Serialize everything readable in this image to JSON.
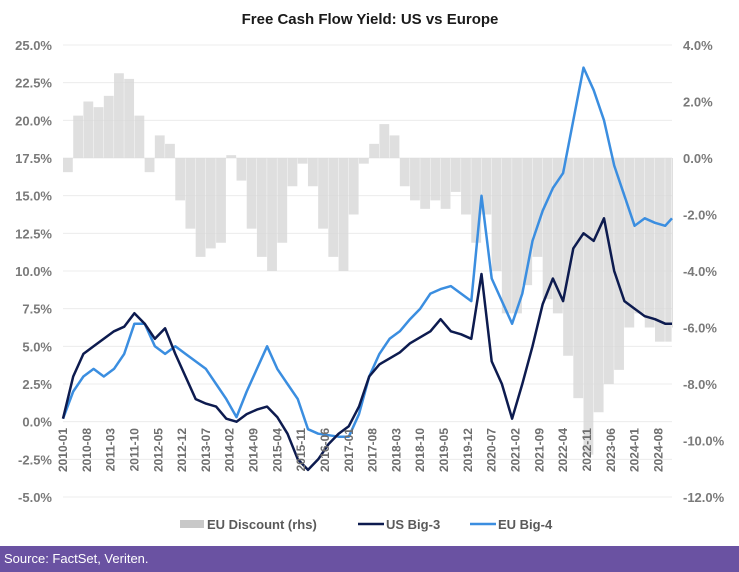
{
  "chart_data": {
    "type": "line",
    "title": "Free Cash Flow Yield: US vs Europe",
    "xlabel": "",
    "ylabel": "",
    "y_left": {
      "range": [
        -5.0,
        25.0
      ],
      "ticks": [
        "25.0%",
        "22.5%",
        "20.0%",
        "17.5%",
        "15.0%",
        "12.5%",
        "10.0%",
        "7.5%",
        "5.0%",
        "2.5%",
        "0.0%",
        "-2.5%",
        "-5.0%"
      ]
    },
    "y_right": {
      "range": [
        -12.0,
        4.0
      ],
      "ticks": [
        "4.0%",
        "2.0%",
        "0.0%",
        "-2.0%",
        "-4.0%",
        "-6.0%",
        "-8.0%",
        "-10.0%",
        "-12.0%"
      ]
    },
    "x_ticks": [
      "2010-01",
      "2010-08",
      "2011-03",
      "2011-10",
      "2012-05",
      "2012-12",
      "2013-07",
      "2014-02",
      "2014-09",
      "2015-04",
      "2015-11",
      "2016-06",
      "2017-01",
      "2017-08",
      "2018-03",
      "2018-10",
      "2019-05",
      "2019-12",
      "2020-07",
      "2021-02",
      "2021-09",
      "2022-04",
      "2022-11",
      "2023-06",
      "2024-01",
      "2024-08"
    ],
    "x": [
      "2010-01",
      "2010-04",
      "2010-07",
      "2010-10",
      "2011-01",
      "2011-04",
      "2011-07",
      "2011-10",
      "2012-01",
      "2012-04",
      "2012-07",
      "2012-10",
      "2013-01",
      "2013-04",
      "2013-07",
      "2013-10",
      "2014-01",
      "2014-04",
      "2014-07",
      "2014-10",
      "2015-01",
      "2015-04",
      "2015-07",
      "2015-10",
      "2016-01",
      "2016-04",
      "2016-07",
      "2016-10",
      "2017-01",
      "2017-04",
      "2017-07",
      "2017-10",
      "2018-01",
      "2018-04",
      "2018-07",
      "2018-10",
      "2019-01",
      "2019-04",
      "2019-07",
      "2019-10",
      "2020-01",
      "2020-04",
      "2020-07",
      "2020-10",
      "2021-01",
      "2021-04",
      "2021-07",
      "2021-10",
      "2022-01",
      "2022-04",
      "2022-07",
      "2022-10",
      "2023-01",
      "2023-04",
      "2023-07",
      "2023-10",
      "2024-01",
      "2024-04",
      "2024-07",
      "2024-10",
      "2024-12"
    ],
    "grid": true,
    "legend_position": "bottom",
    "series": [
      {
        "name": "EU Discount (rhs)",
        "type": "bar",
        "axis": "right",
        "color": "#d9d9d9",
        "values": [
          -0.5,
          1.5,
          2.0,
          1.8,
          2.2,
          3.0,
          2.8,
          1.5,
          -0.5,
          0.8,
          0.5,
          -1.5,
          -2.5,
          -3.5,
          -3.2,
          -3.0,
          0.1,
          -0.8,
          -2.5,
          -3.5,
          -4.0,
          -3.0,
          -1.0,
          -0.2,
          -1.0,
          -2.5,
          -3.5,
          -4.0,
          -2.0,
          -0.2,
          0.5,
          1.2,
          0.8,
          -1.0,
          -1.5,
          -1.8,
          -1.5,
          -1.8,
          -1.2,
          -2.0,
          -3.0,
          -2.0,
          -4.0,
          -5.5,
          -5.5,
          -4.5,
          -3.5,
          -5.0,
          -5.5,
          -7.0,
          -8.5,
          -10.5,
          -9.0,
          -8.0,
          -7.5,
          -6.0,
          -5.5,
          -6.0,
          -6.5,
          -6.5,
          -6.0
        ]
      },
      {
        "name": "US Big-3",
        "type": "line",
        "axis": "left",
        "color": "#0d1b4f",
        "values": [
          0.2,
          3.0,
          4.5,
          5.0,
          5.5,
          6.0,
          6.3,
          7.2,
          6.5,
          5.5,
          6.2,
          4.5,
          3.0,
          1.5,
          1.2,
          1.0,
          0.2,
          0.0,
          0.5,
          0.8,
          1.0,
          0.3,
          -0.8,
          -2.5,
          -3.2,
          -2.5,
          -1.5,
          -0.8,
          -0.3,
          1.0,
          3.0,
          3.8,
          4.2,
          4.6,
          5.2,
          5.6,
          6.0,
          6.8,
          6.0,
          5.8,
          5.5,
          9.8,
          4.0,
          2.5,
          0.2,
          2.5,
          5.0,
          7.8,
          9.5,
          8.0,
          11.5,
          12.5,
          12.0,
          13.5,
          10.0,
          8.0,
          7.5,
          7.0,
          6.8,
          6.5,
          6.5
        ]
      },
      {
        "name": "EU Big-4",
        "type": "line",
        "axis": "left",
        "color": "#3b8ee0",
        "values": [
          0.2,
          2.0,
          3.0,
          3.5,
          3.0,
          3.5,
          4.5,
          6.5,
          6.5,
          5.0,
          4.5,
          5.0,
          4.5,
          4.0,
          3.5,
          2.5,
          1.5,
          0.3,
          2.0,
          3.5,
          5.0,
          3.5,
          2.5,
          1.5,
          -0.5,
          -0.8,
          -0.9,
          -1.0,
          -1.0,
          0.5,
          3.0,
          4.5,
          5.5,
          6.0,
          6.8,
          7.5,
          8.5,
          8.8,
          9.0,
          8.5,
          8.0,
          15.0,
          9.5,
          8.0,
          6.5,
          8.5,
          12.0,
          14.0,
          15.5,
          16.5,
          20.0,
          23.5,
          22.0,
          20.0,
          17.0,
          15.0,
          13.0,
          13.5,
          13.2,
          13.0,
          13.5
        ]
      }
    ]
  },
  "footer": {
    "source": "Source: FactSet, Veriten."
  }
}
